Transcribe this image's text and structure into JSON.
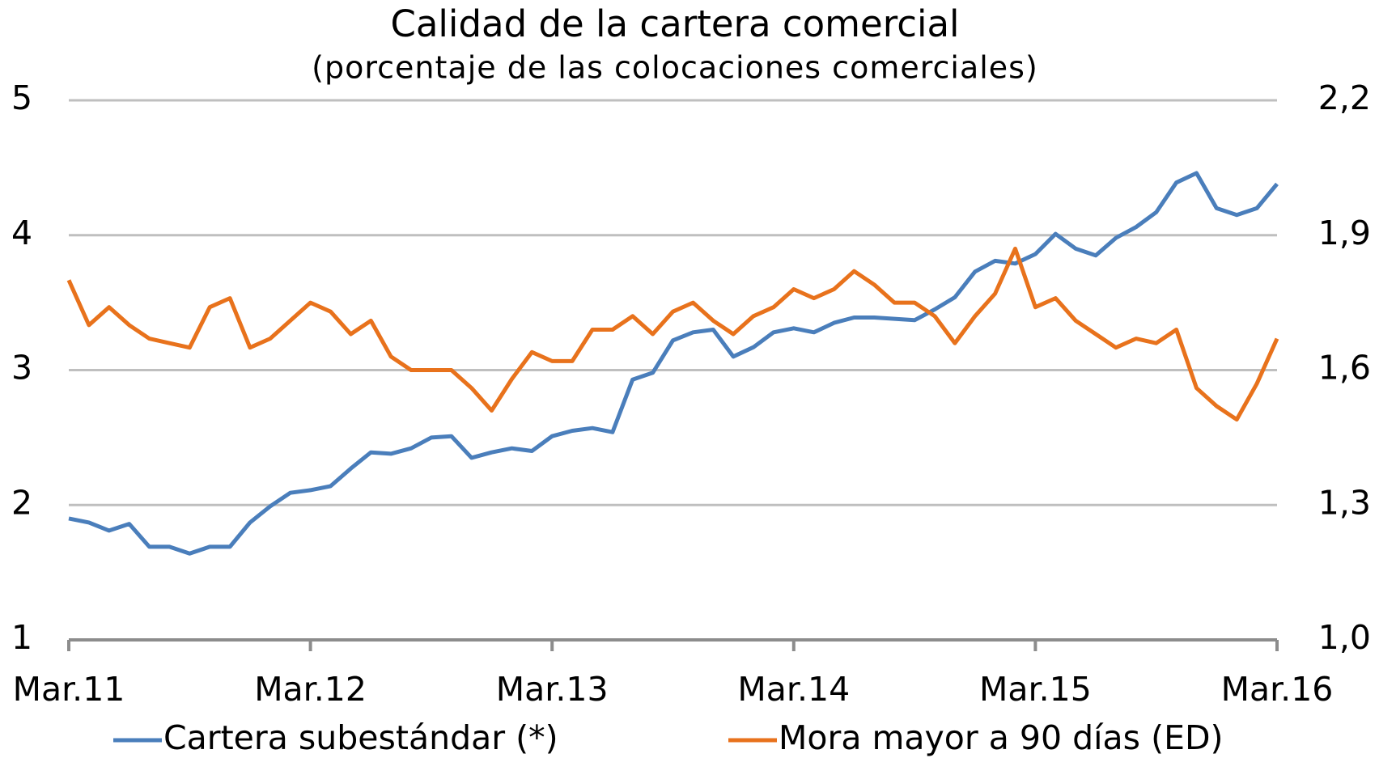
{
  "chart_data": {
    "type": "line",
    "title": "Calidad de la cartera comercial",
    "subtitle": "(porcentaje de las colocaciones comerciales)",
    "categories": [
      "Mar.11",
      null,
      null,
      null,
      null,
      null,
      null,
      null,
      null,
      null,
      null,
      null,
      "Mar.12",
      null,
      null,
      null,
      null,
      null,
      null,
      null,
      null,
      null,
      null,
      null,
      "Mar.13",
      null,
      null,
      null,
      null,
      null,
      null,
      null,
      null,
      null,
      null,
      null,
      "Mar.14",
      null,
      null,
      null,
      null,
      null,
      null,
      null,
      null,
      null,
      null,
      null,
      "Mar.15",
      null,
      null,
      null,
      null,
      null,
      null,
      null,
      null,
      null,
      null,
      null,
      "Mar.16"
    ],
    "series": [
      {
        "name": "Cartera subestándar (*)",
        "color": "#4a7ebb",
        "values": [
          1.9,
          1.87,
          1.81,
          1.86,
          1.69,
          1.69,
          1.64,
          1.69,
          1.69,
          1.87,
          1.99,
          2.09,
          2.11,
          2.14,
          2.27,
          2.39,
          2.38,
          2.42,
          2.5,
          2.51,
          2.35,
          2.39,
          2.42,
          2.4,
          2.51,
          2.55,
          2.57,
          2.54,
          2.93,
          2.98,
          3.22,
          3.28,
          3.3,
          3.1,
          3.17,
          3.28,
          3.31,
          3.28,
          3.35,
          3.39,
          3.39,
          3.38,
          3.37,
          3.45,
          3.54,
          3.73,
          3.81,
          3.79,
          3.86,
          4.01,
          3.9,
          3.85,
          3.98,
          4.06,
          4.17,
          4.39,
          4.46,
          4.2,
          4.15,
          4.2,
          4.38
        ]
      },
      {
        "name": "Mora mayor a 90 días (ED)",
        "color": "#e8721c",
        "axis": "y2",
        "values": [
          1.8,
          1.7,
          1.74,
          1.7,
          1.67,
          1.66,
          1.65,
          1.74,
          1.76,
          1.65,
          1.67,
          1.71,
          1.75,
          1.73,
          1.68,
          1.71,
          1.63,
          1.6,
          1.6,
          1.6,
          1.56,
          1.51,
          1.58,
          1.64,
          1.62,
          1.62,
          1.69,
          1.69,
          1.72,
          1.68,
          1.73,
          1.75,
          1.71,
          1.68,
          1.72,
          1.74,
          1.78,
          1.76,
          1.78,
          1.82,
          1.79,
          1.75,
          1.75,
          1.72,
          1.66,
          1.72,
          1.77,
          1.87,
          1.74,
          1.76,
          1.71,
          1.68,
          1.65,
          1.67,
          1.66,
          1.69,
          1.56,
          1.52,
          1.49,
          1.57,
          1.67
        ]
      }
    ],
    "ylim": [
      1,
      5
    ],
    "yticks": [
      1,
      2,
      3,
      4,
      5
    ],
    "y2lim": [
      1.0,
      2.2
    ],
    "y2ticks": [
      {
        "value": 1.0,
        "label": "1,0"
      },
      {
        "value": 1.3,
        "label": "1,3"
      },
      {
        "value": 1.6,
        "label": "1,6"
      },
      {
        "value": 1.9,
        "label": "1,9"
      },
      {
        "value": 2.2,
        "label": "2,2"
      }
    ],
    "grid": true
  }
}
